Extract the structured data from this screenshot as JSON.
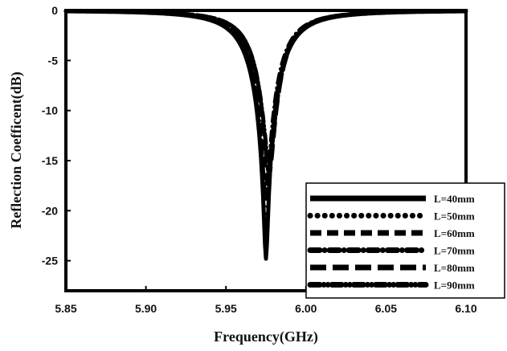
{
  "chart_data": {
    "type": "line",
    "title": "",
    "xlabel": "Frequency(GHz)",
    "ylabel": "Reflection Coefficent(dB)",
    "xlim": [
      5.85,
      6.1
    ],
    "ylim": [
      -28,
      0
    ],
    "x_ticks": [
      "5.85",
      "5.90",
      "5.95",
      "6.00",
      "6.05",
      "6.10"
    ],
    "y_ticks": [
      "0",
      "-5",
      "-10",
      "-15",
      "-20",
      "-25"
    ],
    "grid": false,
    "legend_position": "bottom-right",
    "series": [
      {
        "name": "L=40mm",
        "style": "solid",
        "f0": 5.975,
        "min_db": -24.8,
        "q": 0.0175
      },
      {
        "name": "L=50mm",
        "style": "dotted",
        "f0": 5.975,
        "min_db": -22.5,
        "q": 0.0165
      },
      {
        "name": "L=60mm",
        "style": "dashed",
        "f0": 5.976,
        "min_db": -17.2,
        "q": 0.016
      },
      {
        "name": "L=70mm",
        "style": "dash-dot",
        "f0": 5.975,
        "min_db": -19.0,
        "q": 0.016
      },
      {
        "name": "L=80mm",
        "style": "long-dash",
        "f0": 5.977,
        "min_db": -16.3,
        "q": 0.0155
      },
      {
        "name": "L=90mm",
        "style": "dash-dot-dot",
        "f0": 5.977,
        "min_db": -15.2,
        "q": 0.0155
      }
    ]
  }
}
